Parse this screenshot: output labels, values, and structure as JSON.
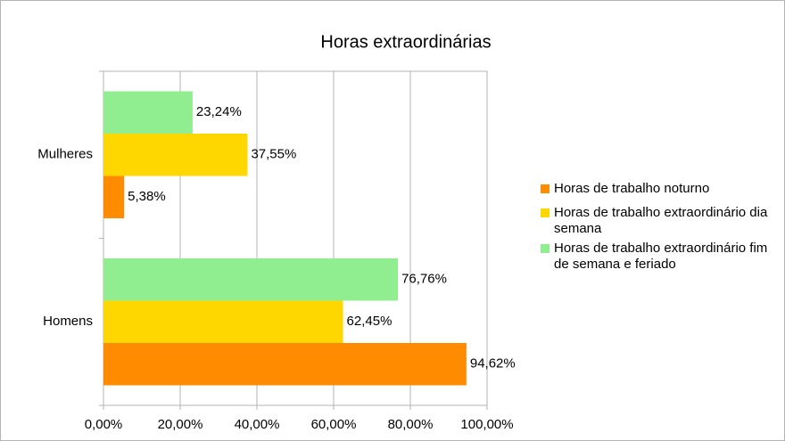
{
  "chart_data": {
    "type": "bar",
    "orientation": "horizontal",
    "title": "Horas extraordinárias",
    "categories": [
      "Homens",
      "Mulheres"
    ],
    "series": [
      {
        "name": "Horas de trabalho noturno",
        "color": "#ff8c00",
        "values": [
          94.62,
          5.38
        ],
        "value_labels": [
          "94,62%",
          "5,38%"
        ]
      },
      {
        "name": "Horas de trabalho extraordinário dia semana",
        "color": "#ffd700",
        "values": [
          62.45,
          37.55
        ],
        "value_labels": [
          "62,45%",
          "37,55%"
        ]
      },
      {
        "name": "Horas de trabalho extraordinário fim de semana e feriado",
        "color": "#90ee90",
        "values": [
          76.76,
          23.24
        ],
        "value_labels": [
          "76,76%",
          "23,24%"
        ]
      }
    ],
    "xlim": [
      0,
      100
    ],
    "xticks": [
      {
        "value": 0,
        "label": "0,00%"
      },
      {
        "value": 20,
        "label": "20,00%"
      },
      {
        "value": 40,
        "label": "40,00%"
      },
      {
        "value": 60,
        "label": "60,00%"
      },
      {
        "value": 80,
        "label": "80,00%"
      },
      {
        "value": 100,
        "label": "100,00%"
      }
    ],
    "grid": true,
    "legend": "right"
  }
}
